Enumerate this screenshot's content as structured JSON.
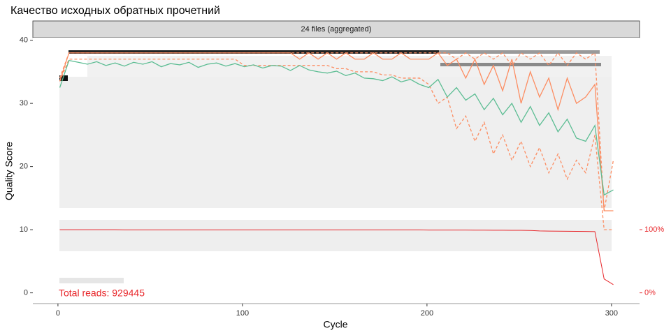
{
  "chart_data": {
    "type": "line",
    "title": "Качество исходных обратных прочетний",
    "strip": "24 files (aggregated)",
    "annotation": "Total reads: 929445",
    "xlabel": "Cycle",
    "ylabel": "Quality Score",
    "xlim": [
      -13.6,
      315.2
    ],
    "xticks": [
      0,
      100,
      200,
      300
    ],
    "ylim": [
      -1.7,
      40.4
    ],
    "yticks": [
      0,
      10,
      20,
      30,
      40
    ],
    "y2lim": [
      -17,
      404
    ],
    "y2ticks": [
      {
        "value": 0,
        "label": "0%"
      },
      {
        "value": 100,
        "label": "100%"
      }
    ],
    "x": [
      1,
      6,
      11,
      16,
      21,
      26,
      31,
      36,
      41,
      46,
      51,
      56,
      61,
      66,
      71,
      76,
      81,
      86,
      91,
      96,
      101,
      106,
      111,
      116,
      121,
      126,
      131,
      136,
      141,
      146,
      151,
      156,
      161,
      166,
      171,
      176,
      181,
      186,
      191,
      196,
      201,
      206,
      211,
      216,
      221,
      226,
      231,
      236,
      241,
      246,
      251,
      256,
      261,
      266,
      271,
      276,
      281,
      286,
      291,
      296,
      301
    ],
    "series": [
      {
        "color": "#fc8d62",
        "style": "dashed",
        "values": [
          34,
          38,
          38,
          38,
          38,
          38,
          38,
          38,
          38,
          38,
          38,
          38,
          38,
          38,
          38,
          38,
          38,
          38,
          38,
          38,
          38,
          38,
          38,
          38,
          38,
          38,
          38,
          38,
          38,
          38,
          38,
          38,
          38,
          38,
          38,
          38,
          38,
          38,
          38,
          38,
          38,
          38,
          38,
          37,
          38,
          37,
          38,
          37,
          38,
          36,
          38,
          37,
          38,
          36,
          38,
          36,
          38,
          37,
          38,
          13,
          21
        ]
      },
      {
        "color": "#fc8d62",
        "style": "solid",
        "values": [
          33.5,
          38,
          38,
          38,
          38,
          38,
          38,
          38,
          38,
          38,
          38,
          38,
          38,
          38,
          38,
          38,
          38,
          38,
          38,
          38,
          38,
          38,
          38,
          38,
          38,
          38,
          37,
          38,
          37,
          38,
          37,
          38,
          37,
          37,
          38,
          37,
          37,
          38,
          37,
          37,
          37,
          38,
          36,
          37,
          34,
          37,
          33,
          36,
          32,
          37,
          30,
          35,
          31,
          34,
          29,
          34,
          30,
          31,
          33,
          13,
          13
        ]
      },
      {
        "color": "#fc8d62",
        "style": "dashed",
        "values": [
          33.5,
          37,
          37,
          37,
          37,
          37,
          37,
          37,
          37,
          37,
          37,
          37,
          37,
          37,
          37,
          37,
          37,
          37,
          37,
          37,
          36,
          36,
          36,
          36,
          36,
          36,
          36,
          36,
          36,
          36,
          35.5,
          35.5,
          35,
          35,
          35,
          34.5,
          34.5,
          34,
          34,
          34,
          33,
          30,
          31,
          26,
          28,
          24,
          27,
          22,
          25,
          21,
          24,
          20,
          23,
          19,
          22,
          18,
          21,
          19,
          25,
          10,
          10
        ]
      },
      {
        "color": "#5cbd93",
        "style": "solid",
        "values": [
          32.5,
          36.8,
          36.5,
          36.2,
          36.6,
          36.0,
          36.4,
          35.9,
          36.5,
          36.2,
          36.6,
          35.8,
          36.3,
          36.1,
          36.5,
          35.7,
          36.2,
          36.4,
          35.9,
          36.3,
          35.8,
          36.1,
          35.6,
          36.0,
          35.9,
          35.2,
          36.0,
          35.3,
          35.0,
          34.8,
          35.1,
          34.4,
          34.8,
          34.0,
          33.9,
          33.6,
          34.2,
          33.4,
          33.8,
          33.0,
          32.5,
          33.8,
          31.0,
          32.5,
          30.5,
          31.5,
          29.0,
          30.8,
          28.2,
          30.0,
          27.0,
          29.5,
          26.5,
          28.5,
          25.5,
          27.5,
          24.5,
          24.0,
          26.5,
          15.5,
          16.3
        ]
      },
      {
        "color": "#e8262a",
        "style": "solid",
        "axis": "y2",
        "values": [
          100,
          100,
          100,
          100,
          100,
          100,
          100,
          99.7,
          99.7,
          99.7,
          99.7,
          99.7,
          99.7,
          99.7,
          99.7,
          99.7,
          99.7,
          99.7,
          99.7,
          99.7,
          99.7,
          99.7,
          99.7,
          99.7,
          99.7,
          99.7,
          99.7,
          99.7,
          99.7,
          99.7,
          99.7,
          99.7,
          99.7,
          99.7,
          99.7,
          99.7,
          99.7,
          99.7,
          99.7,
          99.7,
          99.5,
          99.5,
          99.5,
          99.4,
          99.4,
          99.3,
          99.3,
          99.2,
          99.2,
          99,
          99,
          98.8,
          98,
          97.8,
          97.6,
          97.5,
          97.3,
          97.2,
          97,
          22,
          13
        ]
      }
    ],
    "annotation_color": "#e8262a",
    "y2_color": "#e8262a"
  }
}
